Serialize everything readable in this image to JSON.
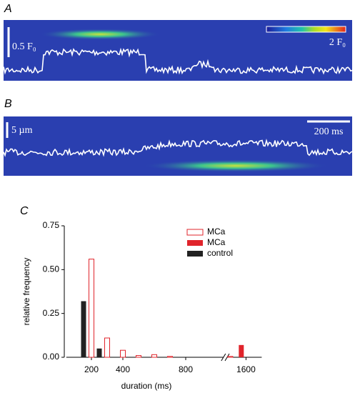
{
  "panels": {
    "a": {
      "label": "A",
      "scale_label": "0.5 F₀",
      "colorbar_label": "2 F₀"
    },
    "b": {
      "label": "B",
      "scale_label": "5 µm",
      "time_label": "200 ms"
    }
  },
  "chart_data": {
    "type": "bar",
    "label": "C",
    "xlabel": "duration (ms)",
    "ylabel": "relative frequency",
    "xlim": [
      40,
      1700
    ],
    "xbreak": [
      1040,
      1480
    ],
    "xticks": [
      200,
      400,
      800,
      1600
    ],
    "ylim": [
      0,
      0.75
    ],
    "yticks": [
      {
        "value": 0,
        "label": "0.00"
      },
      {
        "value": 0.25,
        "label": "0.25"
      },
      {
        "value": 0.5,
        "label": "0.50"
      },
      {
        "value": 0.75,
        "label": "0.75"
      }
    ],
    "series": [
      {
        "name": "MCa",
        "style": "open",
        "color": "#e0242b",
        "x": [
          200,
          300,
          400,
          500,
          600,
          700,
          1500
        ],
        "values": [
          0.56,
          0.11,
          0.04,
          0.01,
          0.015,
          0.005,
          0.005
        ]
      },
      {
        "name": "MCa",
        "style": "filled",
        "color": "#e0242b",
        "x": [
          1570
        ],
        "values": [
          0.07
        ]
      },
      {
        "name": "control",
        "style": "filled",
        "color": "#222222",
        "x": [
          150,
          250
        ],
        "values": [
          0.32,
          0.05
        ]
      }
    ],
    "legend": "top-right"
  }
}
